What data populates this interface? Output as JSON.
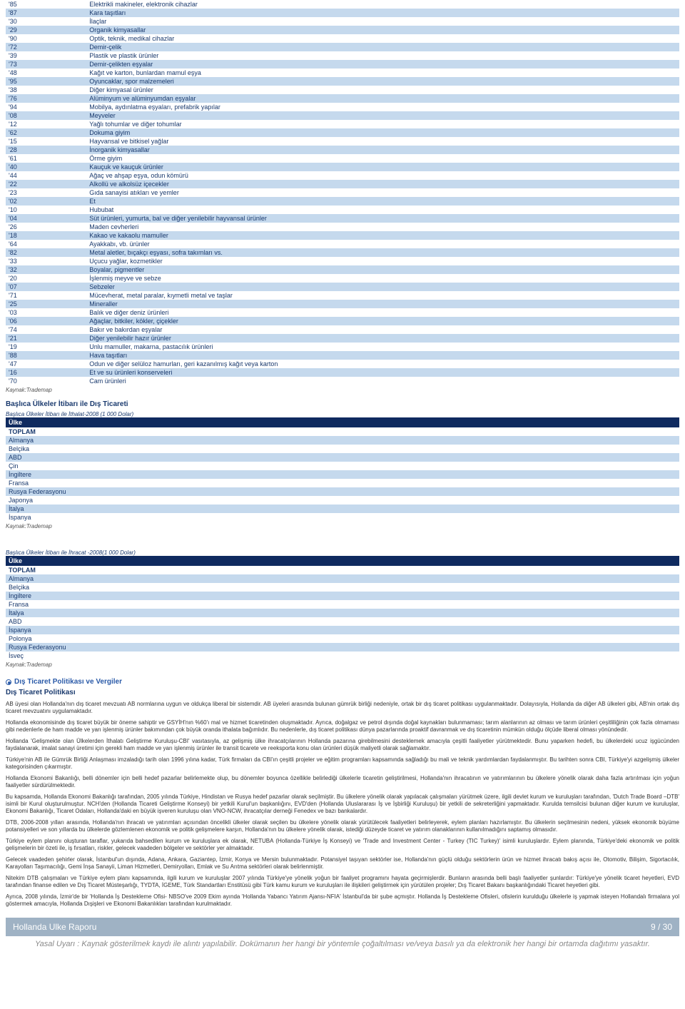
{
  "colors": {
    "header_bg": "#0f2a5f",
    "row_alt_bg": "#c5d9ed",
    "link_color": "#2a5aa8",
    "footer_bg": "#9fb2c4",
    "text_color": "#1a3a6e"
  },
  "products": [
    {
      "code": "'85",
      "desc": "Elektrikli makineler, elektronik cihazlar",
      "link": false
    },
    {
      "code": "'87",
      "desc": "Kara taşıtları",
      "link": true
    },
    {
      "code": "'30",
      "desc": "İlaçlar",
      "link": false
    },
    {
      "code": "'29",
      "desc": "Organik kimyasallar",
      "link": true
    },
    {
      "code": "'90",
      "desc": "Optik, teknik, medikal cihazlar",
      "link": false
    },
    {
      "code": "'72",
      "desc": "Demir-çelik",
      "link": true
    },
    {
      "code": "'39",
      "desc": "Plastik ve plastik ürünler",
      "link": false
    },
    {
      "code": "'73",
      "desc": "Demir-çelikten eşyalar",
      "link": false
    },
    {
      "code": "'48",
      "desc": "Kağıt ve karton, bunlardan mamul eşya",
      "link": false
    },
    {
      "code": "'95",
      "desc": "Oyuncaklar, spor malzemeleri",
      "link": false
    },
    {
      "code": "'38",
      "desc": "Diğer kimyasal ürünler",
      "link": false
    },
    {
      "code": "'76",
      "desc": "Alüminyum ve alüminyumdan eşyalar",
      "link": false
    },
    {
      "code": "'94",
      "desc": "Mobilya, aydınlatma eşyaları, prefabrik yapılar",
      "link": false
    },
    {
      "code": "'08",
      "desc": "Meyveler",
      "link": false
    },
    {
      "code": "'12",
      "desc": "Yağlı tohumlar ve diğer tohumlar",
      "link": false
    },
    {
      "code": "'62",
      "desc": "Dokuma giyim",
      "link": false
    },
    {
      "code": "'15",
      "desc": "Hayvansal ve bitkisel yağlar",
      "link": false
    },
    {
      "code": "'28",
      "desc": "İnorganik kimyasallar",
      "link": false
    },
    {
      "code": "'61",
      "desc": "Örme giyim",
      "link": false
    },
    {
      "code": "'40",
      "desc": "Kauçuk ve kauçuk ürünler",
      "link": false
    },
    {
      "code": "'44",
      "desc": "Ağaç ve ahşap eşya, odun kömürü",
      "link": false
    },
    {
      "code": "'22",
      "desc": "Alkollü ve alkolsüz içecekler",
      "link": false
    },
    {
      "code": "'23",
      "desc": "Gıda sanayisi atıkları ve yemler",
      "link": false
    },
    {
      "code": "'02",
      "desc": "Et",
      "link": false
    },
    {
      "code": "'10",
      "desc": "Hububat",
      "link": false
    },
    {
      "code": "'04",
      "desc": "Süt ürünleri, yumurta, bal ve diğer yenilebilir hayvansal ürünler",
      "link": false
    },
    {
      "code": "'26",
      "desc": "Maden cevherleri",
      "link": false
    },
    {
      "code": "'18",
      "desc": "Kakao ve kakaolu mamuller",
      "link": false
    },
    {
      "code": "'64",
      "desc": "Ayakkabı, vb. ürünler",
      "link": false
    },
    {
      "code": "'82",
      "desc": "Metal aletler, bıçakçı eşyası, sofra takımları vs.",
      "link": false
    },
    {
      "code": "'33",
      "desc": "Uçucu yağlar, kozmetikler",
      "link": false
    },
    {
      "code": "'32",
      "desc": "Boyalar, pigmentler",
      "link": false
    },
    {
      "code": "'20",
      "desc": "İşlenmiş meyve ve sebze",
      "link": false
    },
    {
      "code": "'07",
      "desc": "Sebzeler",
      "link": false
    },
    {
      "code": "'71",
      "desc": "Mücevherat, metal paralar, kıymetli metal ve taşlar",
      "link": false
    },
    {
      "code": "'25",
      "desc": "Mineraller",
      "link": false
    },
    {
      "code": "'03",
      "desc": "Balık ve diğer deniz ürünleri",
      "link": false
    },
    {
      "code": "'06",
      "desc": "Ağaçlar, bitkiler, kökler, çiçekler",
      "link": false
    },
    {
      "code": "'74",
      "desc": "Bakır ve bakırdan eşyalar",
      "link": false
    },
    {
      "code": "'21",
      "desc": "Diğer yenilebilir hazır ürünler",
      "link": true
    },
    {
      "code": "'19",
      "desc": "Unlu mamuller, makarna, pastacılık ürünleri",
      "link": false
    },
    {
      "code": "'88",
      "desc": "Hava taşıtları",
      "link": false
    },
    {
      "code": "'47",
      "desc": "Odun ve diğer selüloz hamurları, geri kazanılmış kağıt veya karton",
      "link": false
    },
    {
      "code": "'16",
      "desc": "Et ve su ürünleri konserveleri",
      "link": false
    },
    {
      "code": "'70",
      "desc": "Cam ürünleri",
      "link": false
    }
  ],
  "source_label": "Kaynak:Trademap",
  "section1_title": "Başlıca Ülkeler İtibarı ile Dış Ticareti",
  "imports_caption": "Başlıca Ülkeler İtibarı ile İthalat-2008 (1 000 Dolar)",
  "country_header": "Ülke",
  "total_label": "TOPLAM",
  "imports_countries": [
    "Almanya",
    "Belçika",
    "ABD",
    "Çin",
    "İngiltere",
    "Fransa",
    "Rusya Federasyonu",
    "Japonya",
    "İtalya",
    "İspanya"
  ],
  "exports_caption": "Başlıca Ülkeler İtibarı ile İhracat -2008(1 000 Dolar)",
  "exports_countries": [
    "Almanya",
    "Belçika",
    "İngiltere",
    "Fransa",
    "İtalya",
    "ABD",
    "İspanya",
    "Polonya",
    "Rusya Federasyonu",
    "İsveç"
  ],
  "policy_heading": "Dış Ticaret Politikası ve Vergiler",
  "policy_subheading": "Dış Ticaret Politikası",
  "paragraphs": [
    "AB üyesi olan Hollanda'nın dış ticaret mevzuatı AB normlarına uygun ve oldukça liberal bir sistemdir. AB üyeleri arasında bulunan gümrük birliği nedeniyle, ortak bir dış ticaret politikası uygulanmaktadır. Dolayısıyla, Hollanda da diğer AB ülkeleri gibi, AB'nin ortak dış ticaret mevzuatını uygulamaktadır.",
    "Hollanda ekonomisinde dış ticaret büyük bir öneme sahiptir ve GSYİH'nın %60'ı mal ve hizmet ticaretinden oluşmaktadır. Ayrıca, doğalgaz ve petrol dışında doğal kaynakları bulunmaması; tarım alanlarının az olması ve tarım ürünleri çeşitliliğinin çok fazla olmaması gibi nedenlerle de ham madde ve yarı işlenmiş ürünler bakımından çok büyük oranda ithalata bağımlıdır. Bu nedenlerle, dış ticaret politikası dünya pazarlarında proaktif davranmak ve dış ticaretinin mümkün olduğu ölçüde liberal olması yönündedir.",
    "Hollanda 'Gelişmekte olan Ülkelerden İthalatı Geliştirme Kuruluşu-CBI' vasıtasıyla, az gelişmiş ülke ihracatçılarının Hollanda pazarına girebilmesini desteklemek amacıyla çeşitli faaliyetler yürütmektedir. Bunu yaparken hedefi, bu ülkelerdeki ucuz işgücünden faydalanarak, imalat sanayi üretimi için gerekli ham madde ve yarı işlenmiş ürünler ile transit ticarete ve reeksporta konu olan ürünleri düşük maliyetli olarak sağlamaktır.",
    "Türkiye'nin AB ile Gümrük Birliği Anlaşması imzaladığı tarih olan 1996 yılına kadar, Türk firmaları da CBI'ın çeşitli projeler ve eğitim programları kapsamında sağladığı bu mali ve teknik yardımlardan faydalanmıştır. Bu tarihten sonra CBI, Türkiye'yi azgelişmiş ülkeler kategorisinden çıkarmıştır.",
    "Hollanda Ekonomi Bakanlığı, belli dönemler için belli hedef pazarlar belirlemekte olup, bu dönemler boyunca özellikle belirlediği ülkelerle ticaretin geliştirilmesi, Hollanda'nın ihracatının ve yatırımlarının bu ülkelere yönelik olarak daha fazla artırılması için yoğun faaliyetler sürdürülmektedir.",
    "Bu kapsamda, Hollanda Ekonomi Bakanlığı tarafından, 2005 yılında Türkiye, Hindistan ve Rusya hedef pazarlar olarak seçilmiştir. Bu ülkelere yönelik olarak yapılacak çalışmaları yürütmek üzere, ilgili devlet kurum ve kuruluşları tarafından, 'Dutch Trade Board –DTB' isimli bir Kurul oluşturulmuştur. NCH'den (Hollanda Ticareti Geliştirme Konseyi) bir yetkili Kurul'un başkanlığını, EVD'den (Hollanda Uluslararası İş ve İşbirliği Kuruluşu) bir yetkili de sekreterliğini yapmaktadır. Kurulda temsilcisi bulunan diğer kurum ve kuruluşlar, Ekonomi Bakanlığı, Ticaret Odaları, Hollanda'daki en büyük işveren kuruluşu olan VNO-NCW, ihracatçılar derneği Fenedex ve bazı bankalardır.",
    "DTB, 2006-2008 yılları arasında, Hollanda'nın ihracatı ve yatırımları açısından öncelikli ülkeler olarak seçilen bu ülkelere yönelik olarak yürütülecek faaliyetleri belirleyerek, eylem planları hazırlamıştır. Bu ülkelerin seçilmesinin nedeni, yüksek ekonomik büyüme potansiyelleri ve son yıllarda bu ülkelerde gözlemlenen ekonomik ve politik gelişmelere karşın, Hollanda'nın bu ülkelere yönelik olarak, istediği düzeyde ticaret ve yatırım olanaklarının kullanılmadığını saptamış olmasıdır.",
    "Türkiye eylem planını oluşturan taraflar, yukarıda bahsedilen kurum ve kuruluşlara ek olarak, NETUBA (Hollanda-Türkiye İş Konseyi) ve 'Trade and Investment Center - Turkey (TIC Turkey)' isimli kuruluşlardır. Eylem planında, Türkiye'deki ekonomik ve politik gelişmelerin bir özeti ile, iş fırsatları, riskler, gelecek vaadeden bölgeler ve sektörler yer almaktadır.",
    "Gelecek vaadeden şehirler olarak, İstanbul'un dışında, Adana, Ankara, Gaziantep, İzmir, Konya ve Mersin bulunmaktadır. Potansiyel taşıyan sektörler ise, Hollanda'nın güçlü olduğu sektörlerin ürün ve hizmet ihracatı bakış açısı ile, Otomotiv, Bilişim, Sigortacılık, Karayolları Taşımacılığı, Gemi İnşa Sanayii, Liman Hizmetleri, Demiryolları, Emlak ve Su Arıtma sektörleri olarak belirlenmiştir.",
    "Nitekim DTB çalışmaları ve Türkiye eylem planı kapsamında, ilgili kurum ve kuruluşlar 2007 yılında Türkiye'ye yönelik yoğun bir faaliyet programını hayata geçirmişlerdir. Bunların arasında belli başlı faaliyetler şunlardır: Türkiye'ye yönelik ticaret heyetleri, EVD tarafından finanse edilen ve Dış Ticaret Müsteşarlığı, TYDTA, İGEME, Türk Standartları Enstitüsü gibi Türk kamu kurum ve kuruluşları ile ilişkileri geliştirmek için yürütülen projeler; Dış Ticaret Bakanı başkanlığındaki Ticaret heyetleri gibi.",
    "Ayrıca, 2008 yılında, İzmir'de bir 'Hollanda İş Destekleme Ofisi- NBSO've 2009 Ekim ayında 'Hollanda Yabancı Yatırım Ajansı-NFIA' İstanbul'da bir şube açmıştır. Hollanda İş Destekleme Ofisleri, ofislerin kurulduğu ülkelerle iş yapmak isteyen Hollandalı firmalara yol göstermek amacıyla, Hollanda Dışişleri ve Ekonomi Bakanlıkları tarafından kurulmaktadır."
  ],
  "footer_title": "Hollanda Ulke Raporu",
  "footer_page": "9 / 30",
  "legal_notice": "Yasal Uyarı : Kaynak gösterilmek kaydı ile alıntı yapılabilir. Dokümanın her hangi bir yöntemle çoğaltılması ve/veya basılı ya da elektronik her hangi bir ortamda dağıtımı yasaktır."
}
